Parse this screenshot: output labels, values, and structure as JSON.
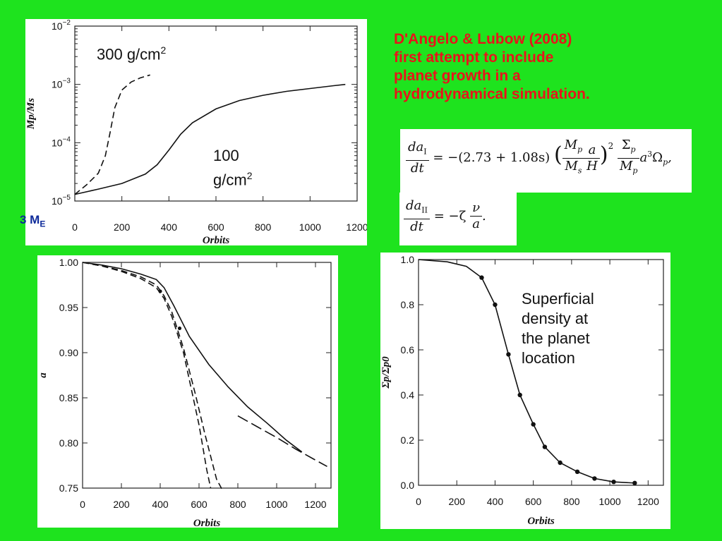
{
  "slide": {
    "description_lines": [
      "D'Angelo & Lubow (2008)",
      "first attempt to include",
      "planet growth in a",
      "hydrodynamical simulation."
    ],
    "mass_label_main": "3 M",
    "mass_label_sub": "E",
    "eq1": {
      "lhs_num": "da",
      "lhs_num_sub": "I",
      "lhs_den": "dt",
      "rhs_mid": "= −(2.73 + 1.08s)",
      "rhs_ratio1_num": "M",
      "rhs_ratio1_num_sub": "p",
      "rhs_ratio1_den": "M",
      "rhs_ratio1_den_sub": "s",
      "rhs_a": "a",
      "rhs_H": "H",
      "rhs_pow": "2",
      "sig_num": "Σ",
      "sig_num_sub": "p",
      "sig_den": "M",
      "sig_den_sub": "p",
      "tail": "a",
      "tail_pow": "3",
      "tail_omega": "Ω",
      "tail_omega_sub": "p",
      "tail_end": ","
    },
    "eq2": {
      "lhs_num": "da",
      "lhs_num_sub": "II",
      "lhs_den": "dt",
      "mid": "= −ζ",
      "num": "ν",
      "den": "a",
      "end": "."
    }
  },
  "chart_data": [
    {
      "type": "line",
      "xlabel": "Orbits",
      "ylabel": "Mp/Ms",
      "yscale": "log",
      "xlim": [
        0,
        1200
      ],
      "ylim": [
        1e-05,
        0.01
      ],
      "x_ticks": [
        "0",
        "200",
        "400",
        "600",
        "800",
        "1000",
        "1200"
      ],
      "y_ticks": [
        "10",
        "10",
        "10",
        "10"
      ],
      "y_tick_exponents": [
        "−5",
        "−4",
        "−3",
        "−2"
      ],
      "annotations": [
        {
          "text": "300  g/cm",
          "sup": "2"
        },
        {
          "text_line1": "100",
          "text_line2": "g/cm",
          "sup": "2"
        }
      ],
      "series": [
        {
          "style": "dashed",
          "x": [
            0,
            50,
            100,
            130,
            150,
            170,
            200,
            240,
            280,
            320
          ],
          "y": [
            1.3e-05,
            1.9e-05,
            3e-05,
            6e-05,
            0.00015,
            0.0004,
            0.0008,
            0.0011,
            0.0013,
            0.00145
          ]
        },
        {
          "style": "solid",
          "x": [
            0,
            100,
            200,
            300,
            350,
            400,
            450,
            500,
            600,
            700,
            800,
            900,
            1000,
            1100,
            1150
          ],
          "y": [
            1.3e-05,
            1.6e-05,
            2e-05,
            2.9e-05,
            4.2e-05,
            7.5e-05,
            0.00014,
            0.00022,
            0.00038,
            0.00053,
            0.00065,
            0.00076,
            0.00085,
            0.00095,
            0.001
          ]
        }
      ]
    },
    {
      "type": "line",
      "xlabel": "Orbits",
      "ylabel": "a",
      "xlim": [
        0,
        1280
      ],
      "ylim": [
        0.75,
        1.0
      ],
      "x_ticks": [
        "0",
        "200",
        "400",
        "600",
        "800",
        "1000",
        "1200"
      ],
      "y_ticks": [
        "0.75",
        "0.80",
        "0.85",
        "0.90",
        "0.95",
        "1.00"
      ],
      "series": [
        {
          "style": "solid",
          "x": [
            0,
            100,
            200,
            300,
            380,
            420,
            470,
            550,
            650,
            750,
            850,
            950,
            1050,
            1130
          ],
          "y": [
            1.0,
            0.997,
            0.993,
            0.987,
            0.981,
            0.972,
            0.952,
            0.918,
            0.887,
            0.862,
            0.84,
            0.822,
            0.803,
            0.79
          ]
        },
        {
          "style": "dashed",
          "x": [
            0,
            100,
            200,
            300,
            380,
            420,
            460,
            520,
            580,
            630,
            690,
            720
          ],
          "y": [
            1.0,
            0.996,
            0.991,
            0.984,
            0.975,
            0.963,
            0.945,
            0.905,
            0.855,
            0.81,
            0.76,
            0.748
          ]
        },
        {
          "style": "dashed",
          "x": [
            0,
            100,
            200,
            300,
            380,
            420,
            460,
            520,
            560,
            600,
            640,
            660
          ],
          "y": [
            1.0,
            0.996,
            0.99,
            0.982,
            0.972,
            0.96,
            0.94,
            0.9,
            0.86,
            0.82,
            0.77,
            0.75
          ]
        },
        {
          "style": "long-dash",
          "x": [
            800,
            900,
            1000,
            1100,
            1200,
            1260
          ],
          "y": [
            0.83,
            0.818,
            0.806,
            0.793,
            0.781,
            0.774
          ]
        }
      ],
      "markers": {
        "x": [
          400,
          500
        ],
        "y": [
          0.968,
          0.927
        ]
      }
    },
    {
      "type": "line",
      "xlabel": "Orbits",
      "ylabel": "Σp/Σp0",
      "xlim": [
        0,
        1280
      ],
      "ylim": [
        0,
        1.0
      ],
      "x_ticks": [
        "0",
        "200",
        "400",
        "600",
        "800",
        "1000",
        "1200"
      ],
      "y_ticks": [
        "0.0",
        "0.2",
        "0.4",
        "0.6",
        "0.8",
        "1.0"
      ],
      "annotation": [
        "Superficial",
        "density at",
        "the planet",
        "location"
      ],
      "series": [
        {
          "style": "solid-with-markers",
          "x": [
            0,
            150,
            250,
            330,
            400,
            470,
            530,
            600,
            660,
            740,
            830,
            920,
            1020,
            1130
          ],
          "y": [
            1.0,
            0.99,
            0.97,
            0.92,
            0.8,
            0.58,
            0.4,
            0.27,
            0.17,
            0.1,
            0.06,
            0.03,
            0.015,
            0.01
          ]
        }
      ]
    }
  ]
}
